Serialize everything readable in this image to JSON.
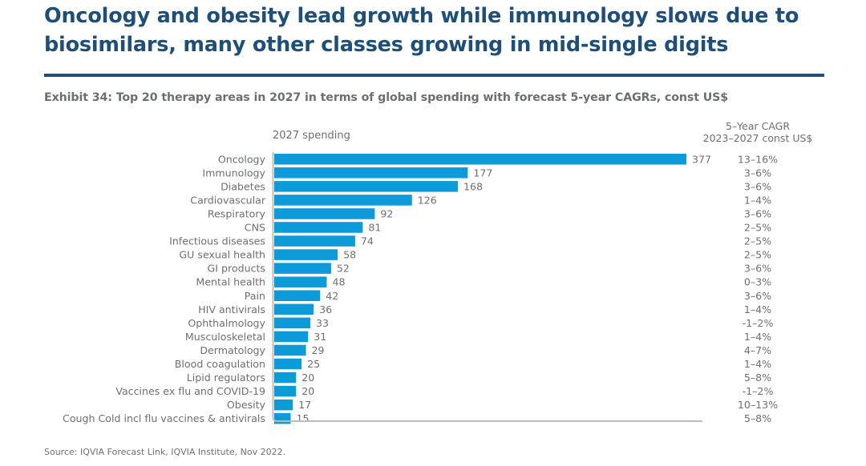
{
  "headline": "Oncology and obesity lead growth while immunology slows due to biosimilars, many other classes growing in mid-single digits",
  "exhibit_title": "Exhibit 34: Top 20 therapy areas in 2027 in terms of global spending with forecast 5-year CAGRs, const US$",
  "source": "Source: IQVIA Forecast Link, IQVIA Institute, Nov 2022.",
  "colors": {
    "bar": "#0c9ad9",
    "headline": "#1d4f79",
    "text": "#6b6f74",
    "axis": "#b9bcc0"
  },
  "chart_data": {
    "type": "bar",
    "orientation": "horizontal",
    "title": "Top 20 therapy areas in 2027 in terms of global spending with forecast 5-year CAGRs, const US$",
    "xlabel": "2027 spending",
    "ylabel": "",
    "cagr_header_line1": "5–Year CAGR",
    "cagr_header_line2": "2023–2027 const US$",
    "xlim": [
      0,
      377
    ],
    "grid": false,
    "legend": "none",
    "categories": [
      "Oncology",
      "Immunology",
      "Diabetes",
      "Cardiovascular",
      "Respiratory",
      "CNS",
      "Infectious diseases",
      "GU sexual health",
      "GI products",
      "Mental health",
      "Pain",
      "HIV antivirals",
      "Ophthalmology",
      "Musculoskeletal",
      "Dermatology",
      "Blood coagulation",
      "Lipid regulators",
      "Vaccines ex flu and COVID-19",
      "Obesity",
      "Cough Cold incl flu vaccines & antivirals"
    ],
    "values": [
      377,
      177,
      168,
      126,
      92,
      81,
      74,
      58,
      52,
      48,
      42,
      36,
      33,
      31,
      29,
      25,
      20,
      20,
      17,
      15
    ],
    "cagr": [
      "13–16%",
      "3–6%",
      "3–6%",
      "1–4%",
      "3–6%",
      "2–5%",
      "2–5%",
      "2–5%",
      "3–6%",
      "0–3%",
      "3–6%",
      "1–4%",
      "-1–2%",
      "1–4%",
      "4–7%",
      "1–4%",
      "5–8%",
      "-1–2%",
      "10–13%",
      "5–8%"
    ]
  }
}
